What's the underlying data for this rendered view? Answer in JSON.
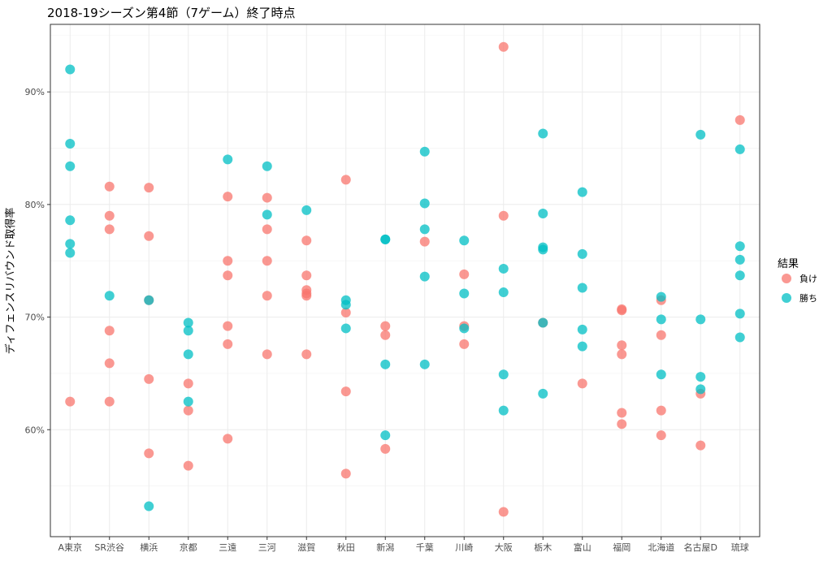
{
  "chart_data": {
    "type": "scatter",
    "title": "2018-19シーズン第4節（7ゲーム）終了時点",
    "xlabel": "",
    "ylabel": "ディフェンスリバウンド取得率",
    "ylim": [
      0.505,
      0.96
    ],
    "yticks": [
      0.6,
      0.7,
      0.8,
      0.9
    ],
    "ytick_labels": [
      "60%",
      "70%",
      "80%",
      "90%"
    ],
    "grid": true,
    "legend": {
      "title": "結果",
      "position": "right"
    },
    "categories": [
      "A東京",
      "SR渋谷",
      "横浜",
      "京都",
      "三遠",
      "三河",
      "滋賀",
      "秋田",
      "新潟",
      "千葉",
      "川崎",
      "大阪",
      "栃木",
      "富山",
      "福岡",
      "北海道",
      "名古屋D",
      "琉球"
    ],
    "series": [
      {
        "name": "負け",
        "color": "#F8766D",
        "points": [
          [
            "A東京",
            0.625
          ],
          [
            "SR渋谷",
            0.816
          ],
          [
            "SR渋谷",
            0.79
          ],
          [
            "SR渋谷",
            0.778
          ],
          [
            "SR渋谷",
            0.688
          ],
          [
            "SR渋谷",
            0.659
          ],
          [
            "SR渋谷",
            0.625
          ],
          [
            "横浜",
            0.815
          ],
          [
            "横浜",
            0.772
          ],
          [
            "横浜",
            0.715
          ],
          [
            "横浜",
            0.645
          ],
          [
            "横浜",
            0.579
          ],
          [
            "京都",
            0.641
          ],
          [
            "京都",
            0.617
          ],
          [
            "京都",
            0.568
          ],
          [
            "三遠",
            0.807
          ],
          [
            "三遠",
            0.75
          ],
          [
            "三遠",
            0.737
          ],
          [
            "三遠",
            0.692
          ],
          [
            "三遠",
            0.676
          ],
          [
            "三遠",
            0.592
          ],
          [
            "三河",
            0.806
          ],
          [
            "三河",
            0.778
          ],
          [
            "三河",
            0.75
          ],
          [
            "三河",
            0.719
          ],
          [
            "三河",
            0.667
          ],
          [
            "滋賀",
            0.768
          ],
          [
            "滋賀",
            0.737
          ],
          [
            "滋賀",
            0.724
          ],
          [
            "滋賀",
            0.721
          ],
          [
            "滋賀",
            0.719
          ],
          [
            "滋賀",
            0.667
          ],
          [
            "秋田",
            0.822
          ],
          [
            "秋田",
            0.704
          ],
          [
            "秋田",
            0.634
          ],
          [
            "秋田",
            0.561
          ],
          [
            "新潟",
            0.692
          ],
          [
            "新潟",
            0.684
          ],
          [
            "新潟",
            0.583
          ],
          [
            "千葉",
            0.767
          ],
          [
            "川崎",
            0.738
          ],
          [
            "川崎",
            0.692
          ],
          [
            "川崎",
            0.676
          ],
          [
            "大阪",
            0.94
          ],
          [
            "大阪",
            0.79
          ],
          [
            "大阪",
            0.527
          ],
          [
            "栃木",
            0.695
          ],
          [
            "富山",
            0.641
          ],
          [
            "福岡",
            0.707
          ],
          [
            "福岡",
            0.706
          ],
          [
            "福岡",
            0.675
          ],
          [
            "福岡",
            0.667
          ],
          [
            "福岡",
            0.615
          ],
          [
            "福岡",
            0.605
          ],
          [
            "北海道",
            0.715
          ],
          [
            "北海道",
            0.684
          ],
          [
            "北海道",
            0.617
          ],
          [
            "北海道",
            0.595
          ],
          [
            "名古屋D",
            0.632
          ],
          [
            "名古屋D",
            0.586
          ],
          [
            "琉球",
            0.875
          ]
        ]
      },
      {
        "name": "勝ち",
        "color": "#00BFC4",
        "points": [
          [
            "A東京",
            0.92
          ],
          [
            "A東京",
            0.854
          ],
          [
            "A東京",
            0.834
          ],
          [
            "A東京",
            0.786
          ],
          [
            "A東京",
            0.765
          ],
          [
            "A東京",
            0.757
          ],
          [
            "SR渋谷",
            0.719
          ],
          [
            "横浜",
            0.715
          ],
          [
            "横浜",
            0.532
          ],
          [
            "京都",
            0.695
          ],
          [
            "京都",
            0.688
          ],
          [
            "京都",
            0.667
          ],
          [
            "京都",
            0.625
          ],
          [
            "三遠",
            0.84
          ],
          [
            "三河",
            0.834
          ],
          [
            "三河",
            0.791
          ],
          [
            "滋賀",
            0.795
          ],
          [
            "秋田",
            0.715
          ],
          [
            "秋田",
            0.711
          ],
          [
            "秋田",
            0.69
          ],
          [
            "新潟",
            0.769
          ],
          [
            "新潟",
            0.769
          ],
          [
            "新潟",
            0.658
          ],
          [
            "新潟",
            0.595
          ],
          [
            "千葉",
            0.847
          ],
          [
            "千葉",
            0.801
          ],
          [
            "千葉",
            0.778
          ],
          [
            "千葉",
            0.736
          ],
          [
            "千葉",
            0.658
          ],
          [
            "川崎",
            0.768
          ],
          [
            "川崎",
            0.721
          ],
          [
            "川崎",
            0.69
          ],
          [
            "大阪",
            0.743
          ],
          [
            "大阪",
            0.722
          ],
          [
            "大阪",
            0.649
          ],
          [
            "大阪",
            0.617
          ],
          [
            "栃木",
            0.863
          ],
          [
            "栃木",
            0.792
          ],
          [
            "栃木",
            0.762
          ],
          [
            "栃木",
            0.76
          ],
          [
            "栃木",
            0.695
          ],
          [
            "栃木",
            0.632
          ],
          [
            "富山",
            0.811
          ],
          [
            "富山",
            0.756
          ],
          [
            "富山",
            0.726
          ],
          [
            "富山",
            0.689
          ],
          [
            "富山",
            0.674
          ],
          [
            "北海道",
            0.718
          ],
          [
            "北海道",
            0.698
          ],
          [
            "北海道",
            0.649
          ],
          [
            "名古屋D",
            0.862
          ],
          [
            "名古屋D",
            0.698
          ],
          [
            "名古屋D",
            0.647
          ],
          [
            "名古屋D",
            0.636
          ],
          [
            "琉球",
            0.849
          ],
          [
            "琉球",
            0.763
          ],
          [
            "琉球",
            0.751
          ],
          [
            "琉球",
            0.737
          ],
          [
            "琉球",
            0.703
          ],
          [
            "琉球",
            0.682
          ]
        ]
      }
    ]
  }
}
